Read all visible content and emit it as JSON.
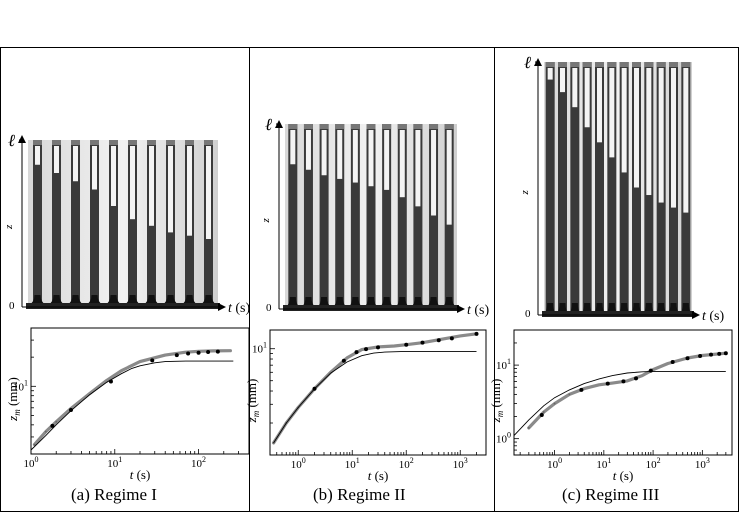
{
  "figure": {
    "panels": [
      {
        "id": "a",
        "caption": "(a) Regime I",
        "photo": {
          "z_label": "z",
          "l_label": "ℓ",
          "zero_label": "0",
          "t_label": "t",
          "t_unit": "(s)",
          "tube_count": 10
        },
        "chart_data": {
          "type": "line",
          "xscale": "log",
          "yscale": "log",
          "xlabel": "t (s)",
          "ylabel": "z_m (mm)",
          "x_tick_labels": [
            "10^0",
            "10^1",
            "10^2"
          ],
          "y_tick_labels": [
            "10^1"
          ],
          "xlim": [
            1,
            400
          ],
          "ylim": [
            2,
            40
          ],
          "series": [
            {
              "name": "experiment",
              "style": "thick-gray",
              "x": [
                1.1,
                1.5,
                2,
                3,
                5,
                8,
                12,
                20,
                40,
                70,
                100,
                150,
                240
              ],
              "y": [
                2.5,
                3.4,
                4.3,
                5.9,
                8.4,
                11.5,
                14.5,
                18,
                21,
                22.5,
                23,
                23.2,
                23.3
              ]
            },
            {
              "name": "model",
              "style": "thin-black",
              "x": [
                1,
                1.5,
                2,
                3,
                5,
                8,
                12,
                16,
                20,
                30,
                40,
                70,
                100,
                200,
                260
              ],
              "y": [
                2.2,
                3.1,
                4,
                5.6,
                8.2,
                11,
                13.5,
                15.3,
                16.3,
                17.5,
                18,
                18.2,
                18.2,
                18.2,
                18.2
              ]
            },
            {
              "name": "photo-markers",
              "style": "dots",
              "x": [
                1.8,
                3,
                9,
                28,
                55,
                75,
                100,
                130,
                170
              ],
              "y": [
                3.9,
                5.7,
                11.2,
                18.5,
                21,
                21.8,
                22.2,
                22.6,
                22.8
              ]
            }
          ]
        }
      },
      {
        "id": "b",
        "caption": "(b) Regime II",
        "photo": {
          "z_label": "z",
          "l_label": "ℓ",
          "zero_label": "0",
          "t_label": "t",
          "t_unit": "(s)",
          "tube_count": 11
        },
        "chart_data": {
          "type": "line",
          "xscale": "log",
          "yscale": "log",
          "xlabel": "t (s)",
          "ylabel": "z_m (mm)",
          "x_tick_labels": [
            "10^0",
            "10^1",
            "10^2",
            "10^3"
          ],
          "y_tick_labels": [
            "10^1"
          ],
          "xlim": [
            0.3,
            3000
          ],
          "ylim": [
            1,
            15
          ],
          "series": [
            {
              "name": "experiment",
              "style": "thick-gray",
              "x": [
                0.35,
                0.6,
                1,
                2,
                4,
                8,
                15,
                30,
                60,
                100,
                200,
                500,
                1000,
                2000
              ],
              "y": [
                1.3,
                2,
                2.8,
                4.2,
                6,
                8.2,
                9.8,
                10.4,
                10.6,
                10.9,
                11.4,
                12.4,
                13.2,
                13.8
              ]
            },
            {
              "name": "model",
              "style": "thin-black",
              "x": [
                0.35,
                0.6,
                1,
                2,
                4,
                8,
                15,
                25,
                40,
                80,
                200,
                1000,
                2000
              ],
              "y": [
                1.3,
                2,
                2.8,
                4.2,
                5.9,
                7.5,
                8.6,
                9.1,
                9.3,
                9.4,
                9.4,
                9.4,
                9.4
              ]
            },
            {
              "name": "photo-markers",
              "style": "dots",
              "x": [
                2,
                7,
                12,
                18,
                30,
                100,
                200,
                400,
                700,
                2000
              ],
              "y": [
                4.2,
                7.7,
                9.3,
                9.9,
                10.3,
                10.9,
                11.4,
                12,
                12.5,
                13.8
              ]
            }
          ]
        }
      },
      {
        "id": "c",
        "caption": "(c) Regime III",
        "photo": {
          "z_label": "z",
          "l_label": "ℓ",
          "zero_label": "0",
          "t_label": "t",
          "t_unit": "(s)",
          "tube_count": 12
        },
        "chart_data": {
          "type": "line",
          "xscale": "log",
          "yscale": "log",
          "xlabel": "t (s)",
          "ylabel": "z_m (mm)",
          "x_tick_labels": [
            "10^0",
            "10^1",
            "10^2",
            "10^3"
          ],
          "y_tick_labels": [
            "10^0",
            "10^1"
          ],
          "xlim": [
            0.15,
            4000
          ],
          "ylim": [
            0.6,
            30
          ],
          "series": [
            {
              "name": "experiment",
              "style": "thick-gray",
              "x": [
                0.3,
                0.6,
                1,
                2,
                4,
                8,
                15,
                30,
                60,
                100,
                200,
                500,
                1000,
                3000
              ],
              "y": [
                1.4,
                2.3,
                3,
                4,
                4.8,
                5.4,
                5.7,
                6.1,
                7.2,
                8.7,
                10.5,
                12.5,
                13.5,
                14.5
              ]
            },
            {
              "name": "model",
              "style": "thin-black",
              "x": [
                0.15,
                0.3,
                0.6,
                1,
                2,
                4,
                8,
                15,
                30,
                60,
                100,
                200,
                1000,
                3000
              ],
              "y": [
                1.1,
                1.8,
                2.8,
                3.6,
                4.6,
                5.6,
                6.5,
                7.2,
                7.8,
                8.1,
                8.2,
                8.2,
                8.2,
                8.2
              ]
            },
            {
              "name": "photo-markers",
              "style": "dots",
              "x": [
                0.55,
                3.5,
                12,
                25,
                45,
                90,
                250,
                500,
                900,
                1500,
                2200,
                3000
              ],
              "y": [
                2.1,
                4.6,
                5.6,
                6,
                6.6,
                8.4,
                11,
                12.4,
                13.3,
                13.9,
                14.2,
                14.5
              ]
            }
          ]
        }
      }
    ]
  }
}
